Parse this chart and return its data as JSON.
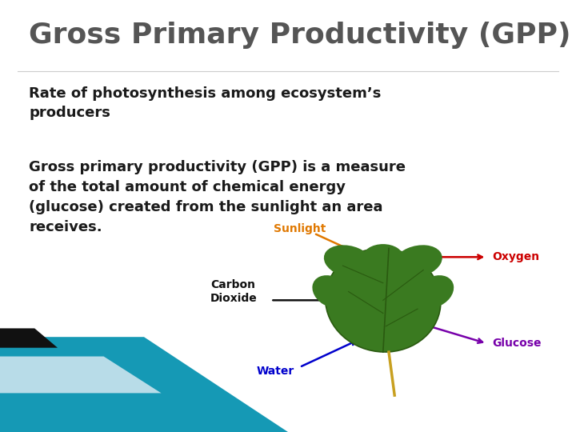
{
  "title": "Gross Primary Productivity (GPP)",
  "title_color": "#555555",
  "title_fontsize": 26,
  "bg_color": "#ffffff",
  "subtitle": "Rate of photosynthesis among ecosystem’s\nproducers",
  "subtitle_fontsize": 13,
  "subtitle_color": "#1a1a1a",
  "body_text": "Gross primary productivity (GPP) is a measure\nof the total amount of chemical energy\n(glucose) created from the sunlight an area\nreceives.",
  "body_fontsize": 13,
  "body_color": "#1a1a1a",
  "corner_teal_color": "#1599b5",
  "corner_dark_color": "#111111",
  "corner_light_color": "#b8dce8",
  "leaf_color": "#3a7a20",
  "leaf_edge_color": "#2a5a10",
  "stem_color": "#c8a020",
  "sunlight_color": "#e07800",
  "oxygen_color": "#cc0000",
  "co2_color": "#111111",
  "water_color": "#0000cc",
  "glucose_color": "#7700aa"
}
